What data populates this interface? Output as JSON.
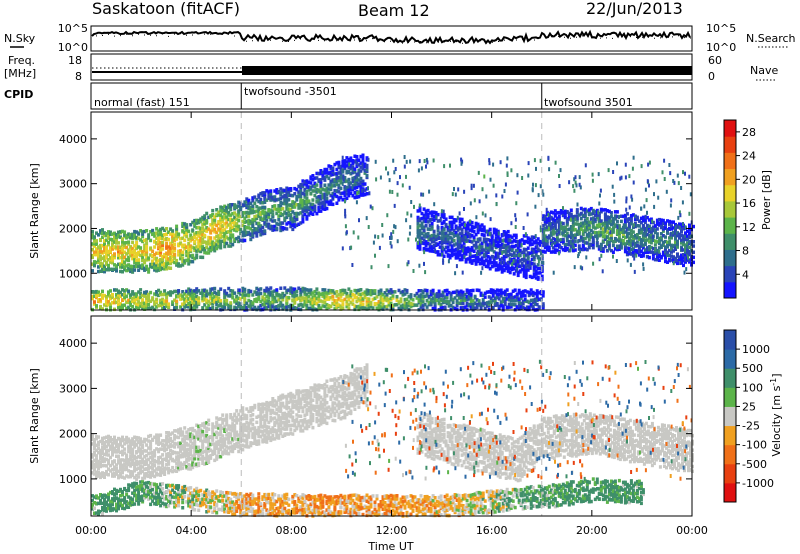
{
  "header": {
    "station": "Saskatoon (fitACF)",
    "beam": "Beam 12",
    "date": "22/Jun/2013"
  },
  "panels": {
    "noise": {
      "left_label": "N.Sky",
      "right_label": "N.Search",
      "left_ticks": [
        "10^5",
        "10^0"
      ],
      "right_ticks": [
        "10^5",
        "10^0"
      ]
    },
    "freq": {
      "left_label_1": "Freq.",
      "left_label_2": "[MHz]",
      "right_label": "Nave",
      "left_ticks": [
        "18",
        "8"
      ],
      "right_ticks": [
        "60",
        "0"
      ]
    },
    "cpid": {
      "label": "CPID",
      "segments": [
        {
          "text": "normal (fast) 151",
          "start_hour": 0
        },
        {
          "text": "twofsound -3501",
          "start_hour": 6
        },
        {
          "text": "twofsound 3501",
          "start_hour": 18
        }
      ]
    }
  },
  "chart_data": [
    {
      "type": "heatmap",
      "name": "power",
      "ylabel": "Slant Range [km]",
      "xlabel": "Time UT",
      "xlim": [
        0,
        24
      ],
      "ylim": [
        180,
        4600
      ],
      "x_ticks": [
        "00:00",
        "04:00",
        "08:00",
        "12:00",
        "16:00",
        "20:00",
        "00:00"
      ],
      "y_ticks": [
        1000,
        2000,
        3000,
        4000
      ],
      "colorbar": {
        "label": "Power [dB]",
        "ticks": [
          4,
          8,
          12,
          16,
          20,
          24,
          28
        ],
        "range": [
          0,
          30
        ],
        "colors": [
          "#1414ff",
          "#2a44b8",
          "#2e6e8c",
          "#3f8f6a",
          "#5cb44a",
          "#a8c83a",
          "#e8d22a",
          "#f0a020",
          "#f07018",
          "#e84010",
          "#e01010"
        ]
      },
      "echo_bands": [
        {
          "hours": [
            0,
            1,
            2,
            3,
            4,
            5,
            6,
            7,
            8,
            9,
            10,
            11
          ],
          "range_km": [
            1500,
            1500,
            1480,
            1560,
            1700,
            2000,
            2150,
            2380,
            2450,
            2800,
            3100,
            3200
          ],
          "power_db": [
            18,
            20,
            18,
            22,
            18,
            20,
            14,
            12,
            12,
            10,
            8,
            8
          ]
        },
        {
          "hours": [
            13,
            14,
            15,
            16,
            17,
            18
          ],
          "range_km": [
            2000,
            1850,
            1700,
            1550,
            1400,
            1300
          ],
          "power_db": [
            8,
            8,
            6,
            6,
            6,
            6
          ]
        },
        {
          "hours": [
            18,
            19,
            20,
            21,
            22,
            23,
            24
          ],
          "range_km": [
            1900,
            1950,
            2000,
            1900,
            1800,
            1700,
            1600
          ],
          "power_db": [
            8,
            10,
            12,
            12,
            10,
            10,
            8
          ]
        },
        {
          "hours": [
            0,
            2,
            4,
            6,
            8,
            10,
            12,
            14,
            16,
            18
          ],
          "range_km": [
            380,
            380,
            400,
            420,
            420,
            400,
            380,
            380,
            380,
            380
          ],
          "power_db": [
            20,
            18,
            16,
            14,
            14,
            20,
            16,
            10,
            8,
            6
          ]
        }
      ]
    },
    {
      "type": "heatmap",
      "name": "velocity",
      "ylabel": "Slant Range [km]",
      "xlabel": "Time UT",
      "xlim": [
        0,
        24
      ],
      "ylim": [
        180,
        4600
      ],
      "x_ticks": [
        "00:00",
        "04:00",
        "08:00",
        "12:00",
        "16:00",
        "20:00",
        "00:00"
      ],
      "y_ticks": [
        1000,
        2000,
        3000,
        4000
      ],
      "colorbar": {
        "label": "Velocity [m s^-1]",
        "ticks": [
          1000,
          500,
          100,
          25,
          -25,
          -100,
          -500,
          -1000
        ],
        "colors": [
          "#2a4ea8",
          "#2c6aa6",
          "#3f8f6a",
          "#5cb44a",
          "#c8c8c4",
          "#f0a020",
          "#f07018",
          "#e84010",
          "#e01010"
        ]
      },
      "echo_bands": [
        {
          "hours": [
            0,
            2,
            4,
            6,
            8,
            10,
            11
          ],
          "range_km": [
            1500,
            1450,
            1700,
            2100,
            2450,
            2800,
            3100
          ],
          "velocity": [
            0,
            0,
            10,
            5,
            0,
            0,
            -5
          ]
        },
        {
          "hours": [
            13,
            15,
            17,
            18,
            20,
            22,
            24
          ],
          "range_km": [
            2000,
            1700,
            1400,
            1900,
            2000,
            1800,
            1600
          ],
          "velocity": [
            0,
            0,
            0,
            0,
            0,
            0,
            0
          ]
        },
        {
          "hours": [
            0,
            1,
            2,
            6,
            10,
            14,
            18,
            20,
            22
          ],
          "range_km": [
            400,
            550,
            700,
            420,
            400,
            380,
            600,
            750,
            700
          ],
          "velocity": [
            80,
            120,
            90,
            -60,
            -80,
            -50,
            90,
            120,
            90
          ]
        }
      ]
    }
  ]
}
